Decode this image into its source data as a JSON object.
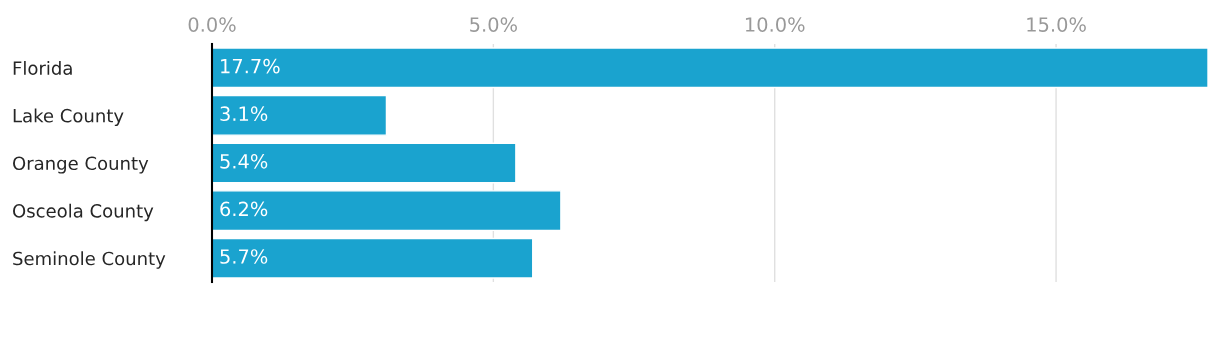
{
  "chart_data": {
    "type": "bar",
    "orientation": "horizontal",
    "categories": [
      "Florida",
      "Lake County",
      "Orange County",
      "Osceola County",
      "Seminole County"
    ],
    "values": [
      17.7,
      3.1,
      5.4,
      6.2,
      5.7
    ],
    "value_labels": [
      "17.7%",
      "3.1%",
      "5.4%",
      "6.2%",
      "5.7%"
    ],
    "color": "#1aa3cf",
    "xlim": [
      0,
      17.7
    ],
    "xticks": [
      {
        "value": 0,
        "label": "0.0%"
      },
      {
        "value": 5,
        "label": "5.0%"
      },
      {
        "value": 10,
        "label": "10.0%"
      },
      {
        "value": 15,
        "label": "15.0%"
      }
    ],
    "grid": "x",
    "legend": false
  }
}
